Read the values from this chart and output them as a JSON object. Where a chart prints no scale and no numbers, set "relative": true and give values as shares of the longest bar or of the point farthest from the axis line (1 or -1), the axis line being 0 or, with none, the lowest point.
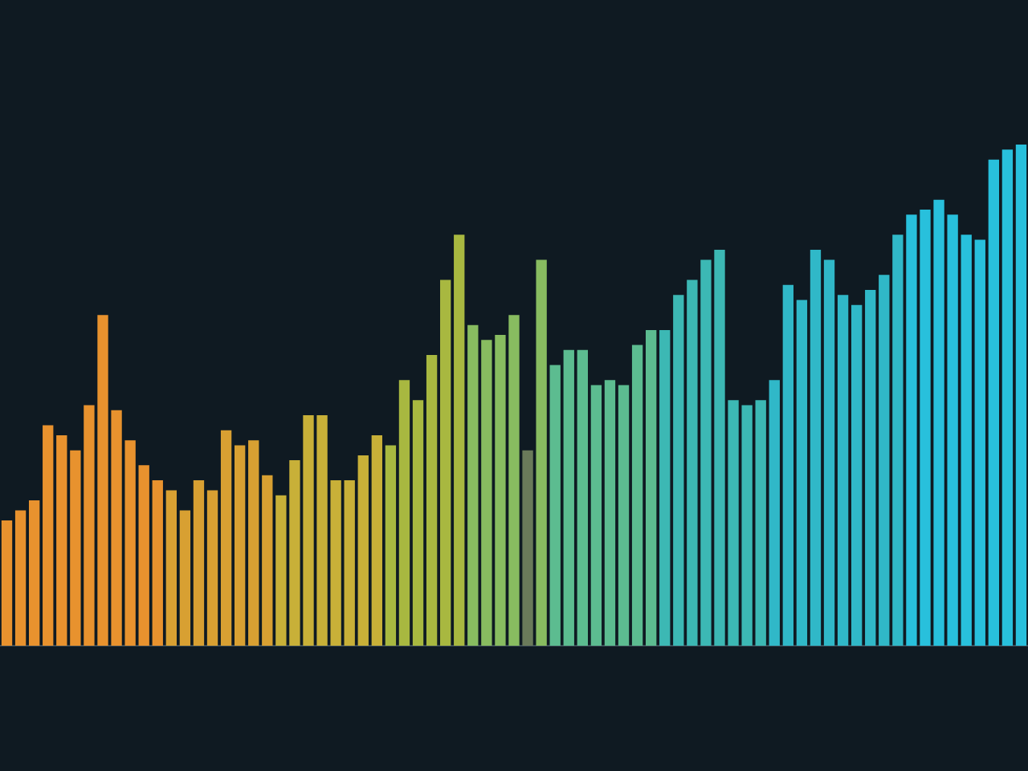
{
  "chart_data": {
    "type": "bar",
    "relative": true,
    "categories": [
      null,
      null,
      null,
      null,
      null,
      null,
      null,
      null,
      null,
      null,
      null,
      null,
      null,
      null,
      null,
      null,
      null,
      null,
      null,
      null,
      null,
      null,
      null,
      null,
      null,
      null,
      null,
      null,
      null,
      null,
      null,
      null,
      null,
      null,
      null,
      null,
      null,
      null,
      null,
      null,
      null,
      null,
      null,
      null,
      null,
      null,
      null,
      null,
      null,
      null,
      null,
      null,
      null,
      null,
      null,
      null,
      null,
      null,
      null,
      null,
      null,
      null,
      null,
      null,
      null,
      null,
      null,
      null,
      null,
      null,
      null,
      null,
      null,
      null,
      null
    ],
    "values": [
      0.25,
      0.27,
      0.29,
      0.44,
      0.42,
      0.39,
      0.48,
      0.66,
      0.47,
      0.41,
      0.36,
      0.33,
      0.31,
      0.27,
      0.33,
      0.31,
      0.43,
      0.4,
      0.41,
      0.34,
      0.3,
      0.37,
      0.46,
      0.46,
      0.33,
      0.33,
      0.38,
      0.42,
      0.4,
      0.53,
      0.49,
      0.58,
      0.73,
      0.82,
      0.64,
      0.61,
      0.62,
      0.66,
      0.39,
      0.77,
      0.56,
      0.59,
      0.59,
      0.52,
      0.53,
      0.52,
      0.6,
      0.63,
      0.63,
      0.7,
      0.73,
      0.77,
      0.79,
      0.49,
      0.48,
      0.49,
      0.53,
      0.72,
      0.69,
      0.79,
      0.77,
      0.7,
      0.68,
      0.71,
      0.74,
      0.82,
      0.86,
      0.87,
      0.89,
      0.86,
      0.82,
      0.81,
      0.97,
      0.99,
      1
    ],
    "colors": [
      "#e8922e",
      "#e8922e",
      "#e8922e",
      "#e8922e",
      "#e8922e",
      "#e8922e",
      "#e8922e",
      "#e8922e",
      "#e8922e",
      "#e8922e",
      "#e8922e",
      "#e8922e",
      "#d8a032",
      "#d8a032",
      "#d8a032",
      "#d8a032",
      "#d8a032",
      "#d8a032",
      "#d8a032",
      "#d8a032",
      "#c8b038",
      "#c8b038",
      "#c8b038",
      "#c8b038",
      "#c8b038",
      "#c8b038",
      "#c8b038",
      "#c8b038",
      "#a8b840",
      "#a8b840",
      "#a8b840",
      "#a8b840",
      "#a8b840",
      "#a8b840",
      "#88bc60",
      "#88bc60",
      "#88bc60",
      "#88bc60",
      "#6a7a5a",
      "#88bc60",
      "#5cbc90",
      "#5cbc90",
      "#5cbc90",
      "#5cbc90",
      "#5cbc90",
      "#5cbc90",
      "#5cbc90",
      "#5cbc90",
      "#3cb8b4",
      "#3cb8b4",
      "#3cb8b4",
      "#3cb8b4",
      "#3cb8b4",
      "#3cb8b4",
      "#3cb8b4",
      "#3cb8b4",
      "#30b8c8",
      "#30b8c8",
      "#30b8c8",
      "#30b8c8",
      "#30b8c8",
      "#30b8c8",
      "#30b8c8",
      "#30b8c8",
      "#30b8c8",
      "#30b8c8",
      "#28c0dc",
      "#28c0dc",
      "#28c0dc",
      "#28c0dc",
      "#28c0dc",
      "#28c0dc",
      "#28c0dc",
      "#28c0dc",
      "#28c0dc"
    ]
  }
}
